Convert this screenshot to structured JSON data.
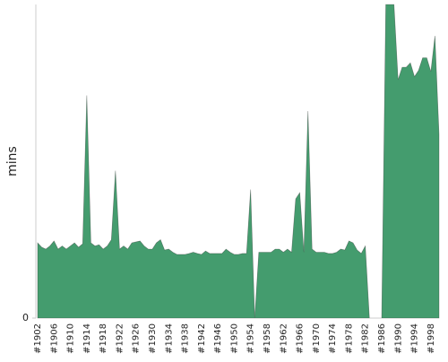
{
  "chart_data": {
    "type": "area",
    "y_label": "mins",
    "color": "#449c6e",
    "categories": [
      "#1902",
      null,
      null,
      null,
      "#1906",
      null,
      null,
      null,
      "#1910",
      null,
      null,
      null,
      "#1914",
      null,
      null,
      null,
      "#1918",
      null,
      null,
      null,
      "#1922",
      null,
      null,
      null,
      "#1926",
      null,
      null,
      null,
      "#1930",
      null,
      null,
      null,
      "#1934",
      null,
      null,
      null,
      "#1938",
      null,
      null,
      null,
      "#1942",
      null,
      null,
      null,
      "#1946",
      null,
      null,
      null,
      "#1950",
      null,
      null,
      null,
      "#1954",
      null,
      null,
      null,
      "#1958",
      null,
      null,
      null,
      "#1962",
      null,
      null,
      null,
      "#1966",
      null,
      null,
      null,
      "#1970",
      null,
      null,
      null,
      "#1974",
      null,
      null,
      null,
      "#1978",
      null,
      null,
      null,
      "#1982",
      null,
      null,
      null,
      "#1986",
      null,
      null,
      null,
      "#1990",
      null,
      null,
      null,
      "#1994",
      null,
      null,
      null,
      "#1998",
      null,
      null
    ],
    "values": [
      24,
      22.6,
      22,
      23,
      24.6,
      22,
      23,
      22,
      23,
      24,
      22.6,
      23.7,
      71,
      24,
      23,
      23.4,
      22,
      23,
      25,
      47,
      22,
      23,
      22,
      24,
      24.3,
      24.6,
      23,
      22,
      22,
      24,
      25,
      21.7,
      22,
      21,
      20.3,
      20.3,
      20.3,
      20.6,
      21,
      20.6,
      20.3,
      21.4,
      20.6,
      20.6,
      20.6,
      20.6,
      22,
      21,
      20.3,
      20.3,
      20.6,
      20.6,
      41,
      0,
      21,
      21,
      21,
      21,
      22,
      22,
      21,
      22,
      21,
      38,
      40,
      21,
      66,
      22,
      21,
      21,
      21,
      20.6,
      20.6,
      21,
      22,
      21.7,
      24.6,
      24,
      21.7,
      20.6,
      23,
      0,
      0,
      0,
      0,
      100,
      100,
      100,
      76,
      80,
      80,
      81.4,
      77,
      79,
      83,
      83,
      78.6,
      90,
      58.6
    ],
    "ylim": [
      0,
      100
    ],
    "yticks": [
      0
    ]
  }
}
